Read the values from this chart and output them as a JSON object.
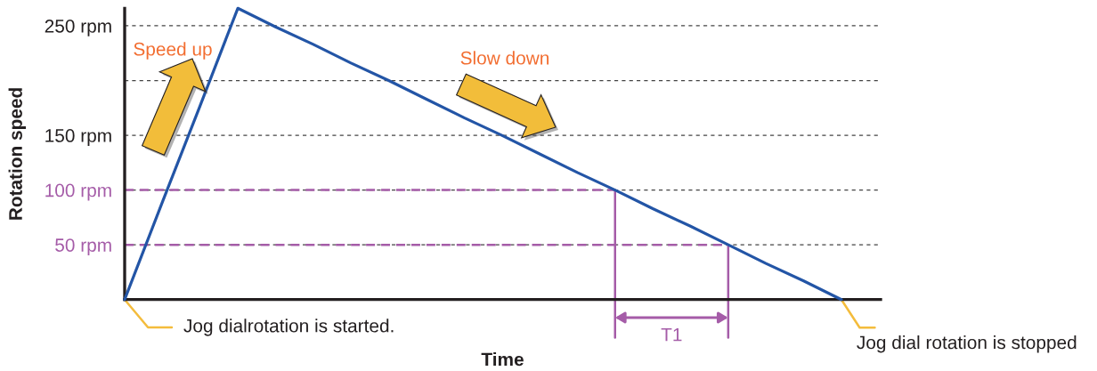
{
  "chart_data": {
    "type": "line",
    "xlabel": "Time",
    "ylabel": "Rotation speed",
    "categories": [
      null,
      null,
      null,
      null,
      null,
      null,
      null,
      null,
      null,
      null,
      null,
      null,
      null,
      null,
      null,
      null,
      null,
      null,
      null,
      null
    ],
    "series": [
      {
        "color": "#2355a6",
        "values": [
          0,
          89,
          177,
          266,
          249,
          233,
          216,
          200,
          183,
          166,
          150,
          133,
          116,
          100,
          83,
          67,
          50,
          33,
          17,
          0
        ]
      }
    ],
    "ylim": [
      0,
      266
    ],
    "yticks": [
      {
        "value": 50,
        "label": "50 rpm"
      },
      {
        "value": 100,
        "label": "100 rpm"
      },
      {
        "value": 150,
        "label": "150 rpm"
      },
      {
        "value": 200,
        "label": null
      },
      {
        "value": 250,
        "label": "250 rpm"
      }
    ],
    "grid": "y",
    "tick_labels": "y",
    "line_style": "solid",
    "ref_lines": [
      {
        "axis": "y",
        "value": 100,
        "color": "#a55ca8",
        "line_style": "dashed"
      },
      {
        "axis": "y",
        "value": 50,
        "color": "#a55ca8",
        "line_style": "dashed"
      }
    ],
    "annotations": [
      "Speed up",
      "Slow down",
      "Jog dialrotation is started.",
      "Jog dial rotation is stopped",
      "T1"
    ]
  }
}
